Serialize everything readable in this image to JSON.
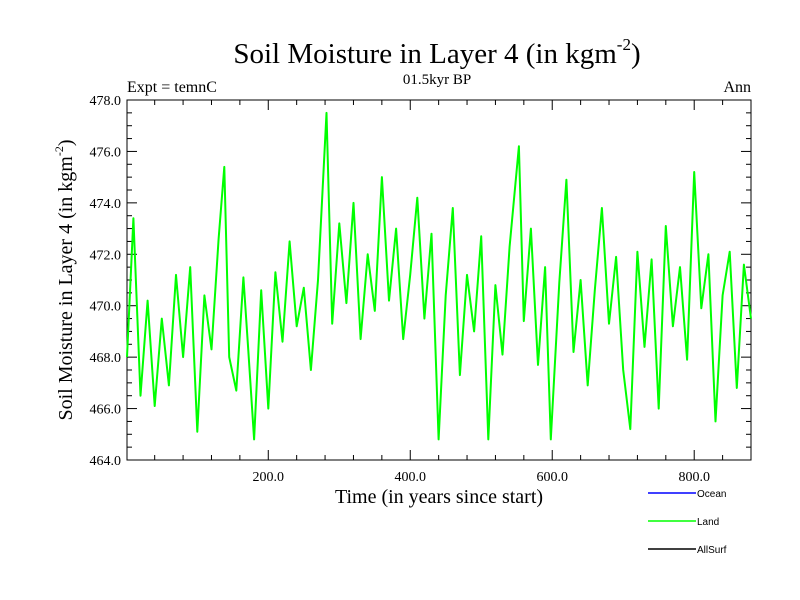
{
  "chart_data": {
    "type": "line",
    "title_main": "Soil Moisture in Layer 4 (in kgm",
    "title_sup": "-2",
    "title_close": ")",
    "subtitle": "01.5kyr BP",
    "left_label": "Expt = temnC",
    "right_label": "Ann",
    "xlabel": "Time (in years since start)",
    "ylabel_main": "Soil Moisture in Layer 4 (in kgm",
    "ylabel_sup": "-2",
    "ylabel_close": ")",
    "xlim": [
      1,
      880
    ],
    "ylim": [
      464.0,
      478.0
    ],
    "xticks": [
      200,
      400,
      600,
      800
    ],
    "xtick_labels": [
      "200.0",
      "400.0",
      "600.0",
      "800.0"
    ],
    "yticks": [
      464,
      466,
      468,
      470,
      472,
      474,
      476,
      478
    ],
    "ytick_labels": [
      "464.0",
      "466.0",
      "468.0",
      "470.0",
      "472.0",
      "474.0",
      "476.0",
      "478.0"
    ],
    "legend": [
      {
        "name": "Ocean",
        "color": "#0000ff"
      },
      {
        "name": "Land",
        "color": "#00ff00"
      },
      {
        "name": "AllSurf",
        "color": "#000000"
      }
    ],
    "series": [
      {
        "name": "Land",
        "color": "#00ff00",
        "x": [
          1,
          10,
          20,
          30,
          40,
          50,
          60,
          70,
          80,
          90,
          100,
          110,
          120,
          130,
          138,
          145,
          155,
          165,
          172,
          180,
          190,
          200,
          210,
          220,
          230,
          240,
          250,
          260,
          270,
          282,
          290,
          300,
          310,
          320,
          330,
          340,
          350,
          360,
          370,
          380,
          390,
          400,
          410,
          420,
          430,
          440,
          450,
          460,
          470,
          480,
          490,
          500,
          510,
          520,
          530,
          540,
          553,
          560,
          570,
          580,
          590,
          598,
          610,
          620,
          630,
          640,
          650,
          660,
          670,
          680,
          690,
          700,
          710,
          720,
          730,
          740,
          750,
          760,
          770,
          780,
          790,
          800,
          810,
          820,
          830,
          840,
          850,
          860,
          870,
          880
        ],
        "values": [
          468.0,
          473.4,
          466.5,
          470.2,
          466.1,
          469.5,
          466.9,
          471.2,
          468.0,
          471.5,
          465.1,
          470.4,
          468.3,
          472.6,
          475.4,
          468.0,
          466.7,
          471.1,
          468.2,
          464.8,
          470.6,
          466.0,
          471.3,
          468.6,
          472.5,
          469.2,
          470.7,
          467.5,
          471.0,
          477.5,
          469.3,
          473.2,
          470.1,
          474.0,
          468.7,
          472.0,
          469.8,
          475.0,
          470.2,
          473.0,
          468.7,
          471.2,
          474.2,
          469.5,
          472.8,
          464.8,
          470.4,
          473.8,
          467.3,
          471.2,
          469.0,
          472.7,
          464.8,
          470.8,
          468.1,
          472.3,
          476.2,
          469.4,
          473.0,
          467.7,
          471.5,
          464.8,
          470.9,
          474.9,
          468.2,
          471.0,
          466.9,
          470.6,
          473.8,
          469.3,
          471.9,
          467.5,
          465.2,
          472.1,
          468.4,
          471.8,
          466.0,
          473.1,
          469.2,
          471.5,
          467.9,
          475.2,
          469.9,
          472.0,
          465.5,
          470.4,
          472.1,
          466.8,
          471.6,
          469.5
        ]
      }
    ]
  }
}
